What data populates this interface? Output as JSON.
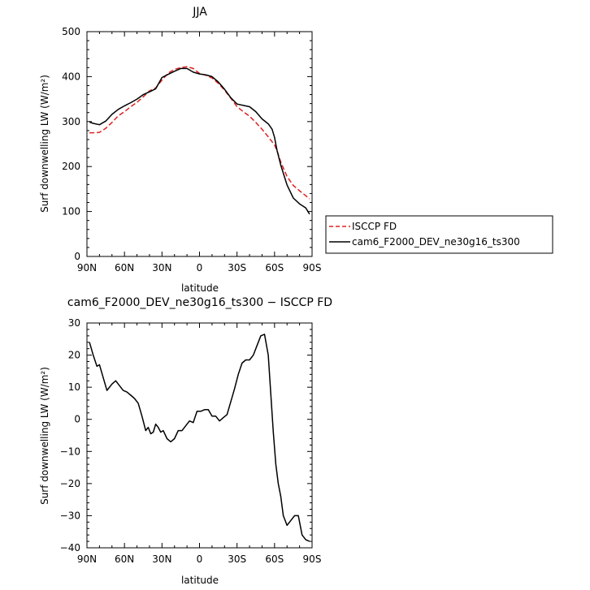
{
  "chart_data": [
    {
      "type": "line",
      "title": "JJA",
      "xlabel": "latitude",
      "ylabel": "Surf downwelling LW (W/m²)",
      "xlim": [
        90,
        -90
      ],
      "ylim": [
        0,
        500
      ],
      "xticks": [
        90,
        60,
        30,
        0,
        -30,
        -60,
        -90
      ],
      "xtick_labels": [
        "90N",
        "60N",
        "30N",
        "0",
        "30S",
        "60S",
        "90S"
      ],
      "yticks": [
        0,
        100,
        200,
        300,
        400,
        500
      ],
      "ytick_labels": [
        "0",
        "100",
        "200",
        "300",
        "400",
        "500"
      ],
      "legend_position": "right",
      "series": [
        {
          "name": "ISCCP FD",
          "color": "#e02020",
          "dash": "dashed",
          "x": [
            88,
            85,
            80,
            75,
            70,
            65,
            60,
            55,
            50,
            45,
            40,
            35,
            30,
            25,
            20,
            15,
            10,
            5,
            0,
            -5,
            -10,
            -15,
            -20,
            -25,
            -30,
            -35,
            -40,
            -45,
            -50,
            -55,
            -60,
            -62,
            -65,
            -70,
            -75,
            -80,
            -85,
            -88
          ],
          "y": [
            275,
            275,
            276,
            285,
            298,
            313,
            322,
            333,
            343,
            355,
            368,
            375,
            392,
            408,
            416,
            420,
            422,
            418,
            407,
            403,
            397,
            385,
            370,
            352,
            333,
            322,
            312,
            298,
            283,
            266,
            248,
            235,
            210,
            178,
            158,
            146,
            135,
            128
          ]
        },
        {
          "name": "cam6_F2000_DEV_ne30g16_ts300",
          "color": "#000000",
          "dash": "solid",
          "x": [
            88,
            85,
            80,
            75,
            70,
            65,
            60,
            55,
            50,
            45,
            40,
            35,
            30,
            25,
            20,
            15,
            10,
            5,
            0,
            -5,
            -10,
            -15,
            -20,
            -25,
            -30,
            -35,
            -40,
            -45,
            -50,
            -55,
            -58,
            -60,
            -62,
            -65,
            -70,
            -75,
            -80,
            -85,
            -88
          ],
          "y": [
            299,
            296,
            293,
            301,
            316,
            327,
            335,
            342,
            350,
            360,
            366,
            373,
            398,
            405,
            412,
            418,
            418,
            410,
            406,
            404,
            400,
            388,
            372,
            353,
            339,
            336,
            333,
            322,
            306,
            295,
            283,
            265,
            236,
            203,
            159,
            130,
            117,
            108,
            94
          ]
        }
      ]
    },
    {
      "type": "line",
      "title": "cam6_F2000_DEV_ne30g16_ts300 − ISCCP FD",
      "xlabel": "latitude",
      "ylabel": "Surf downwelling LW (W/m²)",
      "xlim": [
        90,
        -90
      ],
      "ylim": [
        -40,
        30
      ],
      "xticks": [
        90,
        60,
        30,
        0,
        -30,
        -60,
        -90
      ],
      "xtick_labels": [
        "90N",
        "60N",
        "30N",
        "0",
        "30S",
        "60S",
        "90S"
      ],
      "yticks": [
        -40,
        -30,
        -20,
        -10,
        0,
        10,
        20,
        30
      ],
      "ytick_labels": [
        "−40",
        "−30",
        "−20",
        "−10",
        "0",
        "10",
        "20",
        "30"
      ],
      "series": [
        {
          "color": "#000000",
          "dash": "solid",
          "x": [
            88,
            85,
            82,
            80,
            77,
            74,
            70,
            67,
            64,
            61,
            58,
            55,
            52,
            49,
            46,
            43,
            41,
            39,
            37,
            35,
            33,
            31,
            29,
            26,
            23,
            20,
            17,
            14,
            11,
            8,
            5,
            2,
            -1,
            -4,
            -7,
            -10,
            -13,
            -16,
            -19,
            -22,
            -25,
            -28,
            -31,
            -34,
            -37,
            -40,
            -43,
            -46,
            -49,
            -52,
            -55,
            -57,
            -59,
            -61,
            -63,
            -65,
            -67,
            -70,
            -73,
            -76,
            -79,
            -82,
            -85,
            -88
          ],
          "y": [
            24,
            20,
            16.5,
            17,
            13,
            9,
            11,
            12,
            10.5,
            9,
            8.5,
            7.5,
            6.5,
            5,
            1,
            -3.5,
            -2.5,
            -4.5,
            -4,
            -1.5,
            -2.5,
            -4,
            -3.5,
            -6,
            -7,
            -6,
            -3.5,
            -3.5,
            -2,
            -0.5,
            -1,
            2.5,
            2.5,
            3,
            3,
            1,
            1,
            -0.5,
            0.5,
            1.5,
            5.5,
            9.5,
            14,
            17.5,
            18.5,
            18.5,
            20,
            23,
            26,
            26.5,
            20,
            8,
            -4,
            -14,
            -20,
            -24,
            -30,
            -33,
            -31.5,
            -30,
            -30,
            -36,
            -37.5,
            -38
          ]
        }
      ]
    }
  ]
}
